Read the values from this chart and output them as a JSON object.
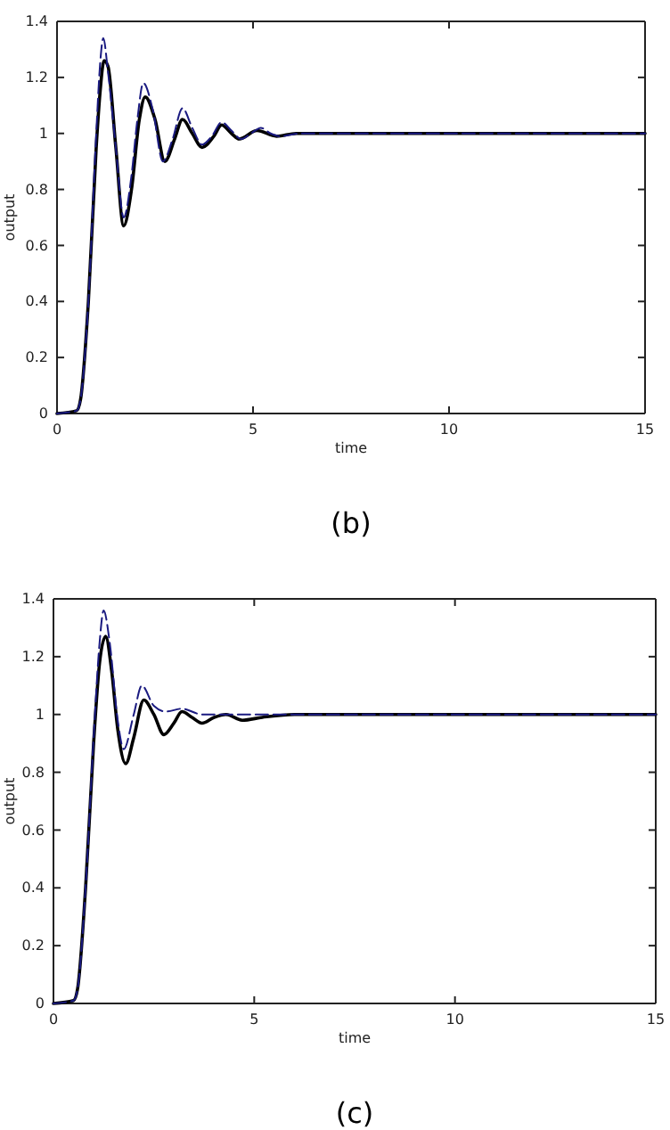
{
  "chart_data": [
    {
      "type": "line",
      "title": "(b)",
      "xlabel": "time",
      "ylabel": "output",
      "xlim": [
        0,
        15
      ],
      "ylim": [
        0,
        1.4
      ],
      "xticks": [
        0,
        5,
        10,
        15
      ],
      "yticks": [
        0,
        0.2,
        0.4,
        0.6,
        0.8,
        1,
        1.2,
        1.4
      ],
      "grid": false,
      "series": [
        {
          "color": "#1a1a80",
          "line_style": "dashed",
          "x": [
            0,
            0.5,
            0.6,
            0.8,
            1.0,
            1.1,
            1.18,
            1.3,
            1.5,
            1.7,
            1.9,
            2.05,
            2.2,
            2.45,
            2.7,
            2.95,
            3.2,
            3.45,
            3.7,
            3.95,
            4.2,
            4.45,
            4.7,
            4.95,
            5.2,
            5.45,
            5.7,
            6.2,
            7,
            15
          ],
          "values": [
            0,
            0.01,
            0.05,
            0.4,
            1.0,
            1.25,
            1.34,
            1.22,
            0.95,
            0.7,
            0.85,
            1.05,
            1.18,
            1.08,
            0.9,
            0.98,
            1.09,
            1.02,
            0.96,
            0.99,
            1.04,
            1.01,
            0.98,
            1.0,
            1.02,
            1.0,
            0.99,
            1.0,
            1,
            1
          ]
        },
        {
          "color": "#000000",
          "line_style": "solid",
          "x": [
            0,
            0.5,
            0.6,
            0.8,
            1.0,
            1.1,
            1.2,
            1.3,
            1.5,
            1.7,
            1.9,
            2.1,
            2.25,
            2.5,
            2.75,
            3.0,
            3.2,
            3.45,
            3.7,
            4.0,
            4.2,
            4.45,
            4.65,
            5.1,
            5.6,
            6.1,
            7,
            15
          ],
          "values": [
            0,
            0.01,
            0.05,
            0.4,
            0.95,
            1.15,
            1.26,
            1.24,
            0.95,
            0.67,
            0.8,
            1.05,
            1.13,
            1.05,
            0.9,
            0.98,
            1.05,
            1.0,
            0.95,
            0.99,
            1.03,
            1.0,
            0.98,
            1.01,
            0.99,
            1.0,
            1,
            1
          ]
        }
      ]
    },
    {
      "type": "line",
      "title": "(c)",
      "xlabel": "time",
      "ylabel": "output",
      "xlim": [
        0,
        15
      ],
      "ylim": [
        0,
        1.4
      ],
      "xticks": [
        0,
        5,
        10,
        15
      ],
      "yticks": [
        0,
        0.2,
        0.4,
        0.6,
        0.8,
        1,
        1.2,
        1.4
      ],
      "grid": false,
      "series": [
        {
          "color": "#1a1a80",
          "line_style": "dashed",
          "x": [
            0,
            0.5,
            0.6,
            0.8,
            1.0,
            1.15,
            1.25,
            1.4,
            1.6,
            1.75,
            2.0,
            2.2,
            2.5,
            2.8,
            3.2,
            3.7,
            4.2,
            15
          ],
          "values": [
            0,
            0.01,
            0.05,
            0.4,
            0.92,
            1.25,
            1.36,
            1.25,
            0.98,
            0.88,
            1.0,
            1.1,
            1.03,
            1.01,
            1.02,
            1.0,
            1.0,
            1
          ]
        },
        {
          "color": "#000000",
          "line_style": "solid",
          "x": [
            0,
            0.5,
            0.6,
            0.8,
            1.0,
            1.15,
            1.3,
            1.45,
            1.6,
            1.8,
            2.0,
            2.25,
            2.5,
            2.75,
            3.0,
            3.2,
            3.45,
            3.7,
            4.0,
            4.3,
            4.7,
            5.2,
            6,
            15
          ],
          "values": [
            0,
            0.01,
            0.05,
            0.4,
            0.9,
            1.18,
            1.27,
            1.15,
            0.95,
            0.83,
            0.92,
            1.05,
            1.0,
            0.93,
            0.97,
            1.01,
            0.99,
            0.97,
            0.99,
            1.0,
            0.98,
            0.99,
            1.0,
            1
          ]
        }
      ]
    }
  ]
}
